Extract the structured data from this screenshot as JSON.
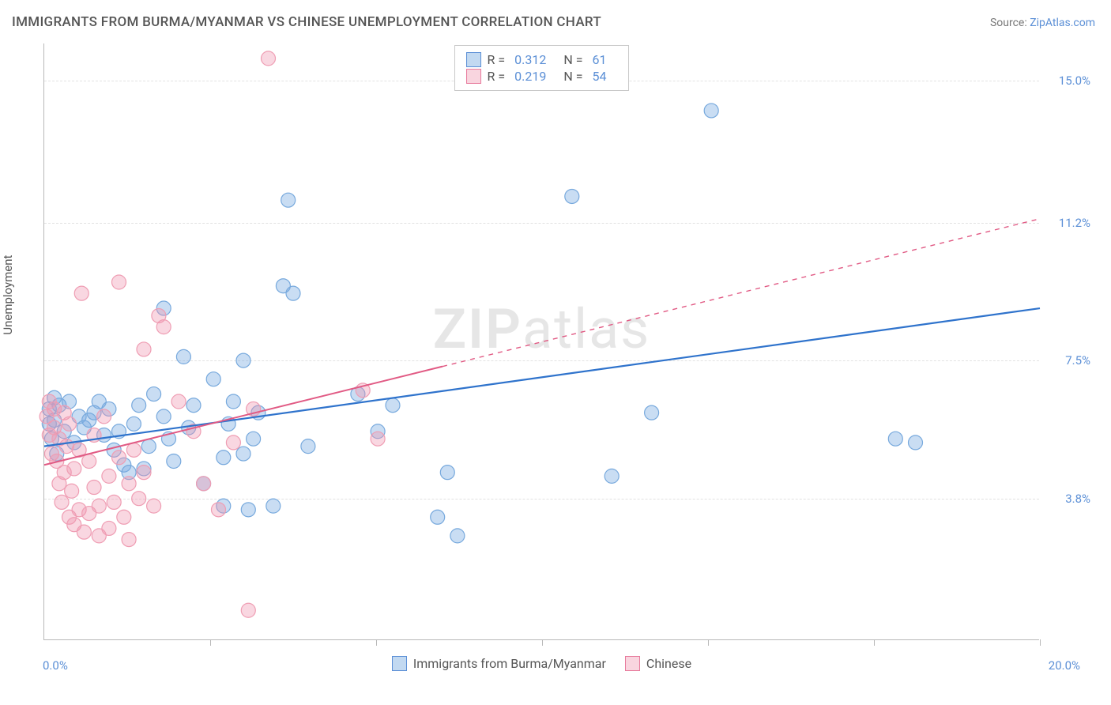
{
  "title": "IMMIGRANTS FROM BURMA/MYANMAR VS CHINESE UNEMPLOYMENT CORRELATION CHART",
  "source_label": "Source:",
  "source_name": "ZipAtlas.com",
  "ylabel": "Unemployment",
  "watermark": "ZIPatlas",
  "chart": {
    "type": "scatter",
    "xlim": [
      0.0,
      20.0
    ],
    "ylim": [
      0.0,
      16.0
    ],
    "x_axis_labels": [
      {
        "v": 0.0,
        "t": "0.0%"
      },
      {
        "v": 20.0,
        "t": "20.0%"
      }
    ],
    "y_gridlines": [
      {
        "v": 3.8,
        "t": "3.8%"
      },
      {
        "v": 7.5,
        "t": "7.5%"
      },
      {
        "v": 11.2,
        "t": "11.2%"
      },
      {
        "v": 15.0,
        "t": "15.0%"
      }
    ],
    "x_ticks": [
      3.33,
      6.67,
      10.0,
      13.33,
      16.67,
      20.0
    ],
    "marker_radius": 9,
    "background_color": "#ffffff",
    "grid_color": "#e2e2e2",
    "series": [
      {
        "name": "Immigrants from Burma/Myanmar",
        "color_fill": "rgba(120,170,225,0.40)",
        "color_stroke": "#77a9dd",
        "legend_swatch_class": "sw-blue",
        "R": "0.312",
        "N": "61",
        "trend": {
          "x1": 0.0,
          "y1": 5.2,
          "x2": 20.0,
          "y2": 8.9,
          "solid_until_x": 20.0,
          "stroke": "#2f73cc",
          "width": 2.2
        },
        "points": [
          [
            0.1,
            5.8
          ],
          [
            0.1,
            6.2
          ],
          [
            0.15,
            5.4
          ],
          [
            0.2,
            6.5
          ],
          [
            0.2,
            5.9
          ],
          [
            0.25,
            5.0
          ],
          [
            0.3,
            6.3
          ],
          [
            0.4,
            5.6
          ],
          [
            0.5,
            6.4
          ],
          [
            0.6,
            5.3
          ],
          [
            0.7,
            6.0
          ],
          [
            0.8,
            5.7
          ],
          [
            0.9,
            5.9
          ],
          [
            1.0,
            6.1
          ],
          [
            1.1,
            6.4
          ],
          [
            1.2,
            5.5
          ],
          [
            1.3,
            6.2
          ],
          [
            1.4,
            5.1
          ],
          [
            1.5,
            5.6
          ],
          [
            1.6,
            4.7
          ],
          [
            1.7,
            4.5
          ],
          [
            1.8,
            5.8
          ],
          [
            1.9,
            6.3
          ],
          [
            2.0,
            4.6
          ],
          [
            2.1,
            5.2
          ],
          [
            2.2,
            6.6
          ],
          [
            2.4,
            8.9
          ],
          [
            2.4,
            6.0
          ],
          [
            2.5,
            5.4
          ],
          [
            2.6,
            4.8
          ],
          [
            2.8,
            7.6
          ],
          [
            2.9,
            5.7
          ],
          [
            3.0,
            6.3
          ],
          [
            3.2,
            4.2
          ],
          [
            3.4,
            7.0
          ],
          [
            3.6,
            4.9
          ],
          [
            3.6,
            3.6
          ],
          [
            3.7,
            5.8
          ],
          [
            3.8,
            6.4
          ],
          [
            4.0,
            5.0
          ],
          [
            4.0,
            7.5
          ],
          [
            4.1,
            3.5
          ],
          [
            4.2,
            5.4
          ],
          [
            4.3,
            6.1
          ],
          [
            4.6,
            3.6
          ],
          [
            4.8,
            9.5
          ],
          [
            4.9,
            11.8
          ],
          [
            5.0,
            9.3
          ],
          [
            5.3,
            5.2
          ],
          [
            6.3,
            6.6
          ],
          [
            6.7,
            5.6
          ],
          [
            7.0,
            6.3
          ],
          [
            7.9,
            3.3
          ],
          [
            8.1,
            4.5
          ],
          [
            8.3,
            2.8
          ],
          [
            10.6,
            11.9
          ],
          [
            11.4,
            4.4
          ],
          [
            12.2,
            6.1
          ],
          [
            13.4,
            14.2
          ],
          [
            17.1,
            5.4
          ],
          [
            17.5,
            5.3
          ]
        ]
      },
      {
        "name": "Chinese",
        "color_fill": "rgba(240,150,175,0.38)",
        "color_stroke": "#ef9db3",
        "legend_swatch_class": "sw-pink",
        "R": "0.219",
        "N": "54",
        "trend": {
          "x1": 0.0,
          "y1": 4.7,
          "x2": 20.0,
          "y2": 11.3,
          "solid_until_x": 8.0,
          "stroke": "#e15a84",
          "width": 2.0
        },
        "points": [
          [
            0.05,
            6.0
          ],
          [
            0.1,
            5.5
          ],
          [
            0.1,
            6.4
          ],
          [
            0.15,
            5.0
          ],
          [
            0.2,
            5.7
          ],
          [
            0.2,
            6.2
          ],
          [
            0.25,
            4.8
          ],
          [
            0.3,
            4.2
          ],
          [
            0.3,
            5.4
          ],
          [
            0.35,
            3.7
          ],
          [
            0.4,
            6.1
          ],
          [
            0.4,
            4.5
          ],
          [
            0.45,
            5.2
          ],
          [
            0.5,
            3.3
          ],
          [
            0.5,
            5.8
          ],
          [
            0.55,
            4.0
          ],
          [
            0.6,
            3.1
          ],
          [
            0.6,
            4.6
          ],
          [
            0.7,
            3.5
          ],
          [
            0.7,
            5.1
          ],
          [
            0.75,
            9.3
          ],
          [
            0.8,
            2.9
          ],
          [
            0.9,
            3.4
          ],
          [
            0.9,
            4.8
          ],
          [
            1.0,
            4.1
          ],
          [
            1.0,
            5.5
          ],
          [
            1.1,
            3.6
          ],
          [
            1.1,
            2.8
          ],
          [
            1.2,
            6.0
          ],
          [
            1.3,
            3.0
          ],
          [
            1.3,
            4.4
          ],
          [
            1.4,
            3.7
          ],
          [
            1.5,
            9.6
          ],
          [
            1.5,
            4.9
          ],
          [
            1.6,
            3.3
          ],
          [
            1.7,
            4.2
          ],
          [
            1.7,
            2.7
          ],
          [
            1.8,
            5.1
          ],
          [
            1.9,
            3.8
          ],
          [
            2.0,
            7.8
          ],
          [
            2.0,
            4.5
          ],
          [
            2.2,
            3.6
          ],
          [
            2.3,
            8.7
          ],
          [
            2.4,
            8.4
          ],
          [
            2.7,
            6.4
          ],
          [
            3.0,
            5.6
          ],
          [
            3.2,
            4.2
          ],
          [
            3.5,
            3.5
          ],
          [
            3.8,
            5.3
          ],
          [
            4.1,
            0.8
          ],
          [
            4.2,
            6.2
          ],
          [
            4.5,
            15.6
          ],
          [
            6.4,
            6.7
          ],
          [
            6.7,
            5.4
          ]
        ]
      }
    ]
  },
  "legend_top_labels": {
    "R": "R =",
    "N": "N ="
  },
  "bottom_legend": [
    {
      "swatch": "sw-blue",
      "label": "Immigrants from Burma/Myanmar"
    },
    {
      "swatch": "sw-pink",
      "label": "Chinese"
    }
  ]
}
